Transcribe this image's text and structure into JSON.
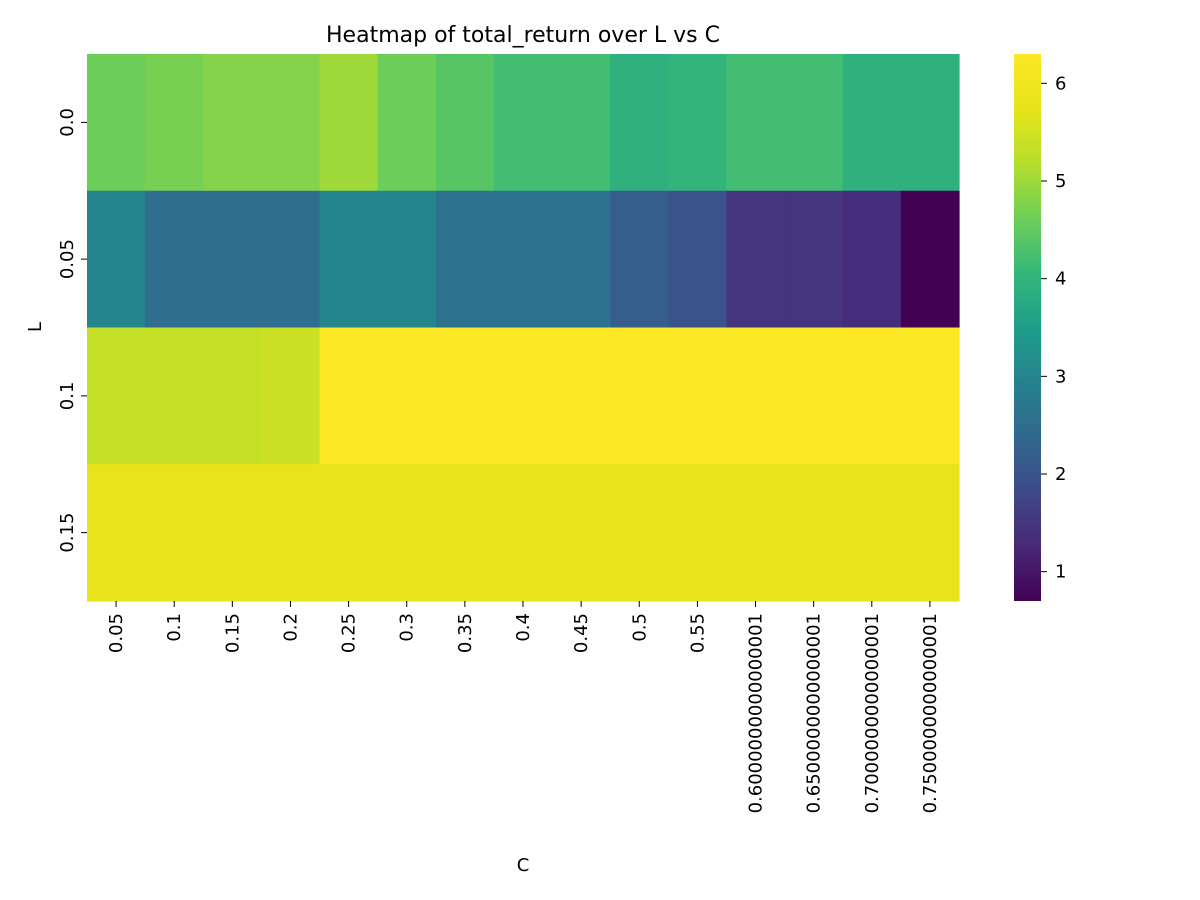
{
  "chart_data": {
    "type": "heatmap",
    "title": "Heatmap of total_return over L vs C",
    "xlabel": "C",
    "ylabel": "L",
    "x_categories": [
      "0.05",
      "0.1",
      "0.15",
      "0.2",
      "0.25",
      "0.3",
      "0.35",
      "0.4",
      "0.45",
      "0.5",
      "0.55",
      "0.6000000000000001",
      "0.6500000000000001",
      "0.7000000000000001",
      "0.7500000000000001"
    ],
    "y_categories": [
      "0.0",
      "0.05",
      "0.1",
      "0.15"
    ],
    "values": [
      [
        4.6,
        4.7,
        4.8,
        4.8,
        5.0,
        4.6,
        4.4,
        4.2,
        4.2,
        3.9,
        4.0,
        4.2,
        4.2,
        3.9,
        3.9
      ],
      [
        3.0,
        2.5,
        2.5,
        2.5,
        3.0,
        3.0,
        2.6,
        2.6,
        2.6,
        2.2,
        2.0,
        1.45,
        1.45,
        1.35,
        0.7
      ],
      [
        5.35,
        5.35,
        5.35,
        5.4,
        6.25,
        6.25,
        6.25,
        6.25,
        6.25,
        6.25,
        6.25,
        6.25,
        6.25,
        6.25,
        6.25
      ],
      [
        5.8,
        5.8,
        5.8,
        5.8,
        5.8,
        5.8,
        5.8,
        5.8,
        5.8,
        5.8,
        5.8,
        5.8,
        5.8,
        5.8,
        5.8
      ]
    ],
    "colormap": "viridis",
    "vmin": 0.7,
    "vmax": 6.3,
    "colorbar_ticks": [
      "1",
      "2",
      "3",
      "4",
      "5",
      "6"
    ],
    "colorbar_tick_values": [
      1,
      2,
      3,
      4,
      5,
      6
    ]
  }
}
